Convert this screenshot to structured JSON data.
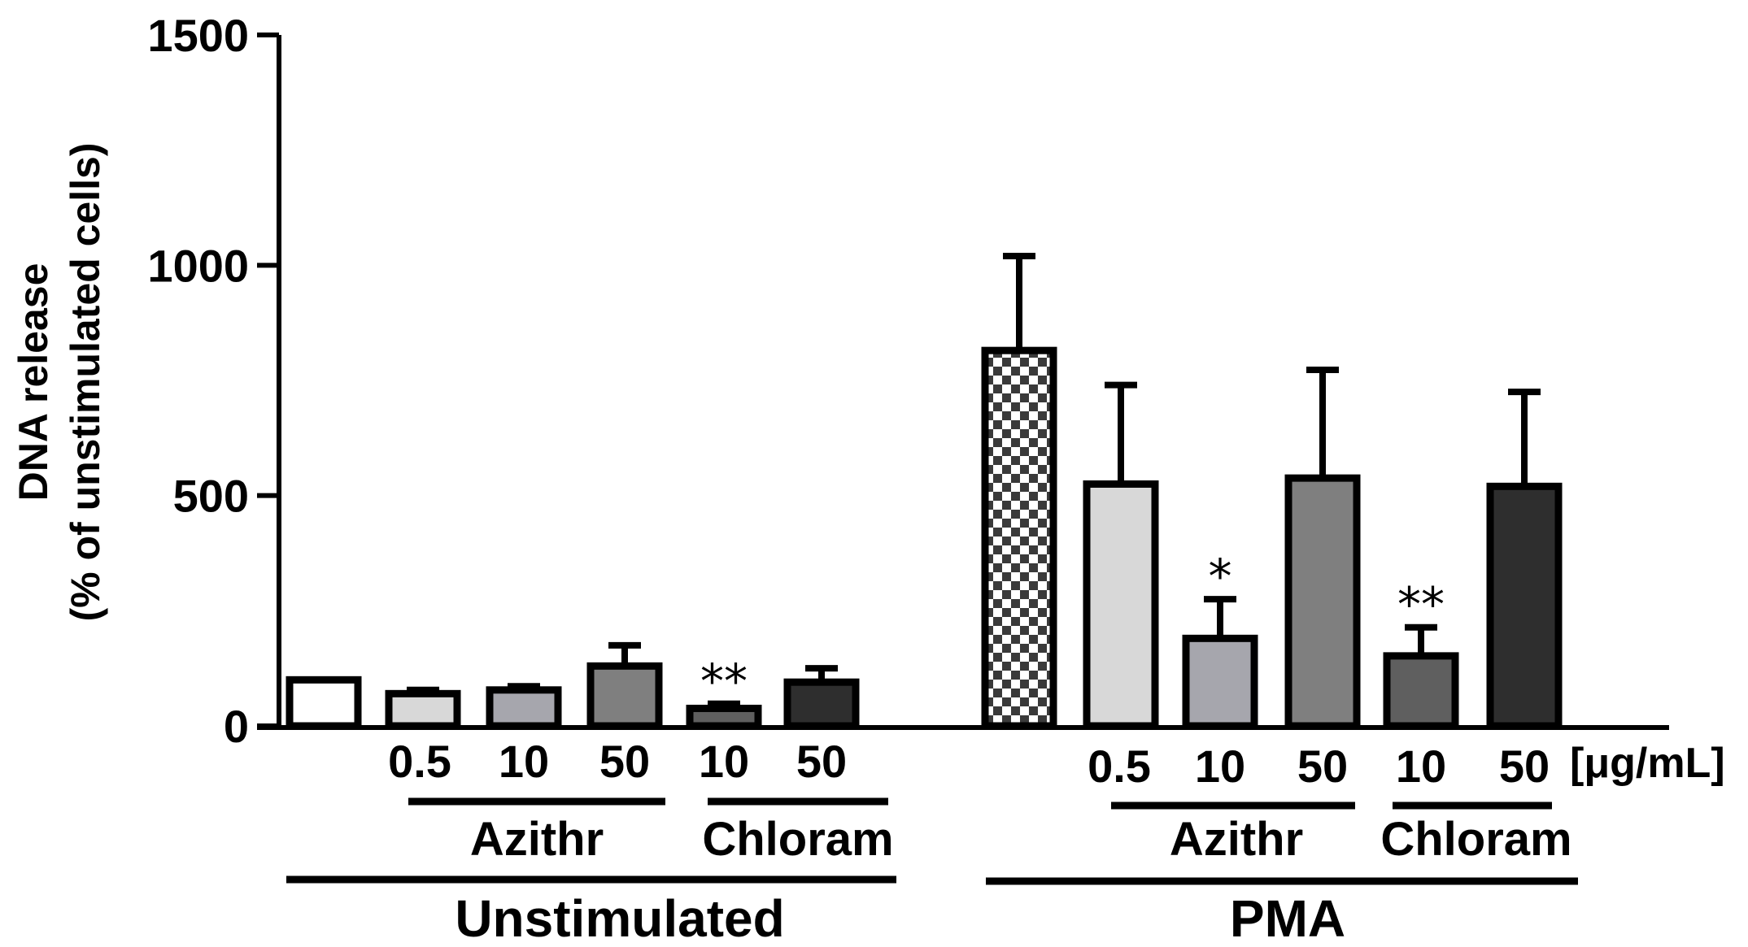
{
  "chart_data": {
    "type": "bar",
    "title": "",
    "ylabel_line1": "DNA release",
    "ylabel_line2": "(% of unstimulated cells)",
    "ylim": [
      0,
      1500
    ],
    "yticks": [
      "0",
      "500",
      "1000",
      "1500"
    ],
    "unit_label": "[μg/mL]",
    "bars": [
      {
        "group": "Unstimulated",
        "drug": "",
        "dose": "",
        "value": 100,
        "error": 0,
        "fill": "#ffffff",
        "pattern": "",
        "annotation": ""
      },
      {
        "group": "Unstimulated",
        "drug": "Azithr",
        "dose": "0.5",
        "value": 70,
        "error": 8,
        "fill": "#d8d8d8",
        "pattern": "",
        "annotation": ""
      },
      {
        "group": "Unstimulated",
        "drug": "Azithr",
        "dose": "10",
        "value": 78,
        "error": 8,
        "fill": "#a6a6ad",
        "pattern": "",
        "annotation": ""
      },
      {
        "group": "Unstimulated",
        "drug": "Azithr",
        "dose": "50",
        "value": 130,
        "error": 45,
        "fill": "#7f7f7f",
        "pattern": "",
        "annotation": ""
      },
      {
        "group": "Unstimulated",
        "drug": "Chloram",
        "dose": "10",
        "value": 38,
        "error": 10,
        "fill": "#5f5f5f",
        "pattern": "",
        "annotation": "**"
      },
      {
        "group": "Unstimulated",
        "drug": "Chloram",
        "dose": "50",
        "value": 95,
        "error": 30,
        "fill": "#2e2e2e",
        "pattern": "",
        "annotation": ""
      },
      {
        "group": "PMA",
        "drug": "",
        "dose": "",
        "value": 815,
        "error": 205,
        "fill": "#ffffff",
        "pattern": "checker",
        "annotation": ""
      },
      {
        "group": "PMA",
        "drug": "Azithr",
        "dose": "0.5",
        "value": 525,
        "error": 215,
        "fill": "#d8d8d8",
        "pattern": "",
        "annotation": ""
      },
      {
        "group": "PMA",
        "drug": "Azithr",
        "dose": "10",
        "value": 190,
        "error": 85,
        "fill": "#a6a6ad",
        "pattern": "",
        "annotation": "*"
      },
      {
        "group": "PMA",
        "drug": "Azithr",
        "dose": "50",
        "value": 538,
        "error": 235,
        "fill": "#7f7f7f",
        "pattern": "",
        "annotation": ""
      },
      {
        "group": "PMA",
        "drug": "Chloram",
        "dose": "10",
        "value": 152,
        "error": 62,
        "fill": "#5f5f5f",
        "pattern": "",
        "annotation": "**"
      },
      {
        "group": "PMA",
        "drug": "Chloram",
        "dose": "50",
        "value": 520,
        "error": 205,
        "fill": "#2e2e2e",
        "pattern": "",
        "annotation": ""
      }
    ],
    "drug_labels": [
      "Azithr",
      "Chloram",
      "Azithr",
      "Chloram"
    ],
    "group_labels": [
      "Unstimulated",
      "PMA"
    ]
  }
}
